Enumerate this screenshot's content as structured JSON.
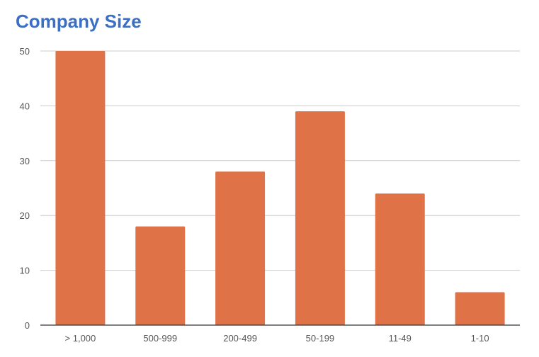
{
  "chart_data": {
    "type": "bar",
    "title": "Company Size",
    "categories": [
      "> 1,000",
      "500-999",
      "200-499",
      "50-199",
      "11-49",
      "1-10"
    ],
    "values": [
      50,
      18,
      28,
      39,
      24,
      6
    ],
    "yticks": [
      "0",
      "10",
      "20",
      "30",
      "40",
      "50"
    ],
    "ylim": [
      0,
      50
    ],
    "grid": true,
    "bar_color": "#e07248",
    "title_color": "#3a6fc4"
  }
}
